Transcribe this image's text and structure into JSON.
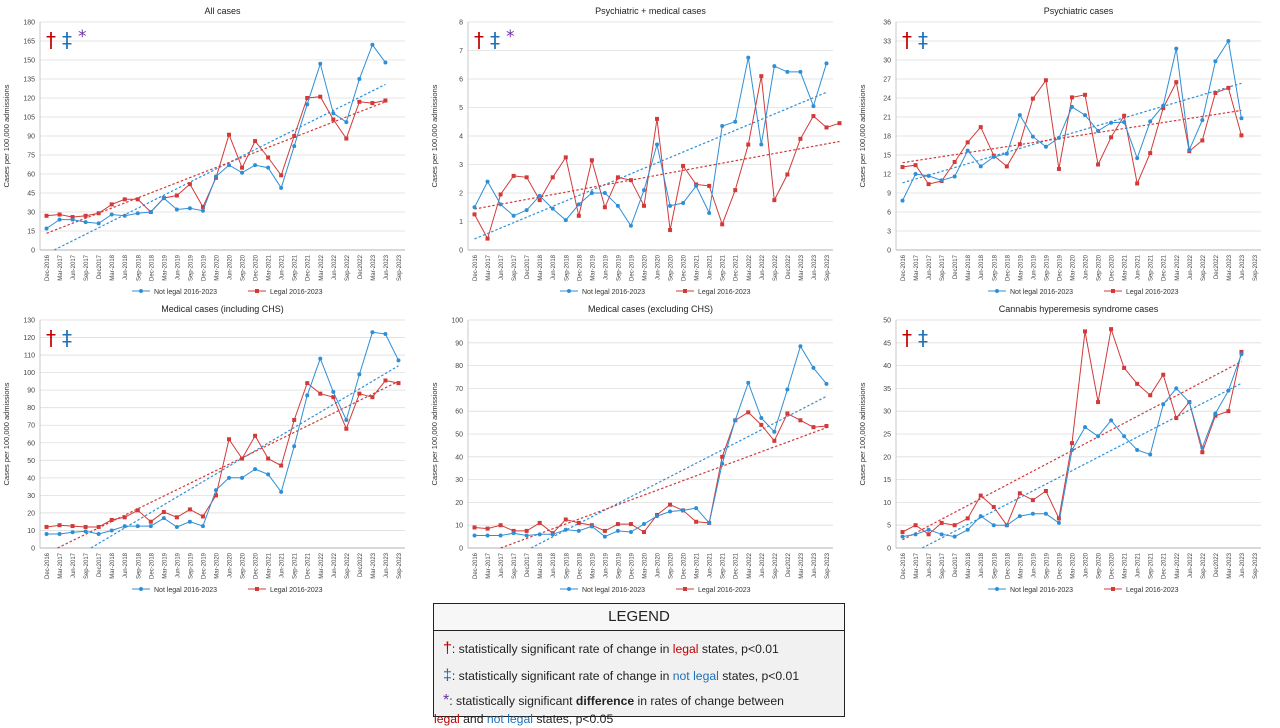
{
  "colors": {
    "not_legal": "#2f8fd6",
    "legal": "#d23a3a",
    "dagger": "#c00000",
    "ddagger": "#1f6fb4",
    "asterisk": "#7030a0"
  },
  "x_ticks": [
    "Dec-2016",
    "Mar-2017",
    "Jun-2017",
    "Sep-2017",
    "Dec2017",
    "Mar-2018",
    "Jun-2018",
    "Sep-2018",
    "Dec-2018",
    "Mar-2019",
    "Jun-2019",
    "Sep-2019",
    "Dec-2019",
    "Mar-2020",
    "Jun-2020",
    "Sep-2020",
    "Dec-2020",
    "Mar-2021",
    "Jun-2021",
    "Sep-2021",
    "Dec-2021",
    "Mar-2022",
    "Jun-2022",
    "Sep-2022",
    "Dec2022",
    "Mar-2023",
    "Jun-2023",
    "Sep-2023"
  ],
  "chart_data": [
    {
      "type": "line",
      "title": "All cases",
      "ylabel": "Cases per 100,000 admissions",
      "ylim": [
        0,
        180
      ],
      "yticks": [
        0,
        15,
        30,
        45,
        60,
        75,
        90,
        105,
        120,
        135,
        150,
        165,
        180
      ],
      "markers": [
        "†",
        "‡",
        "*"
      ],
      "series": [
        {
          "name": "Not legal 2016-2023",
          "values": [
            17,
            24,
            24,
            22,
            21,
            28,
            27,
            29,
            30,
            41,
            32,
            33,
            31,
            58,
            67,
            61,
            67,
            65,
            49,
            82,
            115,
            147,
            108,
            101,
            135,
            162,
            148
          ]
        },
        {
          "name": "Legal 2016-2023",
          "values": [
            27,
            28,
            26,
            27,
            29,
            36,
            40,
            40,
            30,
            41,
            43,
            52,
            34,
            57,
            91,
            65,
            86,
            73,
            59,
            90,
            120,
            121,
            103,
            88,
            117,
            116,
            118
          ]
        }
      ]
    },
    {
      "type": "line",
      "title": "Psychiatric + medical cases",
      "ylabel": "Cases per 100,000 admissions",
      "ylim": [
        0,
        8
      ],
      "yticks": [
        0,
        1,
        2,
        3,
        4,
        5,
        6,
        7,
        8
      ],
      "markers": [
        "†",
        "‡",
        "*"
      ],
      "series": [
        {
          "name": "Not legal 2016-2023",
          "values": [
            1.5,
            2.4,
            1.6,
            1.2,
            1.4,
            1.9,
            1.45,
            1.05,
            1.6,
            2.0,
            2.0,
            1.55,
            0.85,
            2.1,
            3.7,
            1.55,
            1.65,
            2.25,
            1.3,
            4.35,
            4.5,
            6.75,
            3.7,
            6.45,
            6.25,
            6.25,
            5.05,
            6.55
          ]
        },
        {
          "name": "Legal 2016-2023",
          "values": [
            1.25,
            0.4,
            1.95,
            2.6,
            2.55,
            1.75,
            2.55,
            3.25,
            1.2,
            3.15,
            1.5,
            2.55,
            2.45,
            1.55,
            4.6,
            0.7,
            2.95,
            2.3,
            2.25,
            0.9,
            2.1,
            3.7,
            6.1,
            1.75,
            2.65,
            3.9,
            4.7,
            4.3,
            4.45
          ]
        }
      ]
    },
    {
      "type": "line",
      "title": "Psychiatric cases",
      "ylabel": "Cases per 100,000 admissions",
      "ylim": [
        0,
        36
      ],
      "yticks": [
        0,
        3,
        6,
        9,
        12,
        15,
        18,
        21,
        24,
        27,
        30,
        33,
        36
      ],
      "markers": [
        "†",
        "‡"
      ],
      "series": [
        {
          "name": "Not legal 2016-2023",
          "values": [
            7.8,
            12,
            11.7,
            11,
            11.6,
            15.7,
            13.2,
            14.7,
            15.2,
            21.3,
            17.9,
            16.3,
            17.7,
            22.6,
            21.3,
            18.8,
            20.1,
            20.2,
            14.5,
            20.3,
            22.8,
            31.8,
            15.8,
            20.5,
            29.8,
            33,
            20.8
          ]
        },
        {
          "name": "Legal 2016-2023",
          "values": [
            13.1,
            13.4,
            10.4,
            10.9,
            13.9,
            17,
            19.4,
            14.9,
            13.2,
            16.7,
            23.9,
            26.8,
            12.8,
            24.1,
            24.5,
            13.5,
            17.8,
            21.2,
            10.5,
            15.3,
            22.4,
            26.5,
            15.6,
            17.3,
            24.8,
            25.6,
            18.1
          ]
        }
      ]
    },
    {
      "type": "line",
      "title": "Medical cases (including CHS)",
      "ylabel": "Cases per 100,000 admissions",
      "ylim": [
        0,
        130
      ],
      "yticks": [
        0,
        10,
        20,
        30,
        40,
        50,
        60,
        70,
        80,
        90,
        100,
        110,
        120,
        130
      ],
      "markers": [
        "†",
        "‡"
      ],
      "series": [
        {
          "name": "Not legal 2016-2023",
          "values": [
            8,
            8,
            9,
            9.5,
            8,
            10,
            12.5,
            12.5,
            12.5,
            17,
            12,
            15,
            12.5,
            33,
            40,
            40,
            45,
            42,
            32,
            58,
            87,
            108,
            89,
            73,
            99,
            123,
            122,
            107
          ]
        },
        {
          "name": "Legal 2016-2023",
          "values": [
            12,
            13,
            12.5,
            12,
            12,
            16,
            17.5,
            21.5,
            15,
            20.5,
            17.5,
            22,
            18,
            30,
            62,
            51,
            64,
            51,
            47,
            73,
            94,
            88,
            86,
            68,
            88,
            86,
            95.5,
            94
          ]
        }
      ]
    },
    {
      "type": "line",
      "title": "Medical cases (excluding CHS)",
      "ylabel": "Cases per 100,000 admissions",
      "ylim": [
        0,
        100
      ],
      "yticks": [
        0,
        10,
        20,
        30,
        40,
        50,
        60,
        70,
        80,
        90,
        100
      ],
      "markers": [],
      "series": [
        {
          "name": "Not legal 2016-2023",
          "values": [
            5.5,
            5.5,
            5.5,
            6.5,
            5.5,
            6,
            6,
            8,
            7.5,
            9.5,
            5,
            7.5,
            7,
            10.5,
            14,
            16,
            16.5,
            17.5,
            11,
            37,
            56,
            72.5,
            57,
            51,
            69.5,
            88.5,
            79,
            72
          ]
        },
        {
          "name": "Legal 2016-2023",
          "values": [
            9,
            8.5,
            10,
            7.5,
            7.5,
            11,
            6.5,
            12.5,
            11,
            10,
            7.5,
            10.5,
            10.5,
            7,
            14.5,
            19,
            16.5,
            11.5,
            11,
            40,
            56,
            59.5,
            54,
            47,
            59,
            56,
            53,
            53.5
          ]
        }
      ]
    },
    {
      "type": "line",
      "title": "Cannabis hyperemesis syndrome cases",
      "ylabel": "Cases per 100,000 admissions",
      "ylim": [
        0,
        50
      ],
      "yticks": [
        0,
        5,
        10,
        15,
        20,
        25,
        30,
        35,
        40,
        45,
        50
      ],
      "markers": [
        "†",
        "‡"
      ],
      "series": [
        {
          "name": "Not legal 2016-2023",
          "values": [
            2.5,
            3,
            4,
            3,
            2.5,
            4,
            7,
            5,
            5,
            7,
            7.5,
            7.5,
            5.5,
            21.5,
            26.5,
            24.5,
            28,
            24.5,
            21.5,
            20.5,
            31.5,
            35,
            32,
            22,
            29.5,
            34.5,
            42.5
          ]
        },
        {
          "name": "Legal 2016-2023",
          "values": [
            3.5,
            5,
            3,
            5.5,
            5,
            6.5,
            11.5,
            9,
            5,
            12,
            10.5,
            12.5,
            6.5,
            23,
            47.5,
            32,
            48,
            39.5,
            36,
            33.5,
            38,
            28.5,
            32,
            21,
            29,
            30,
            43
          ]
        }
      ]
    }
  ],
  "legend": {
    "title": "LEGEND",
    "dagger": "†",
    "ddagger": "‡",
    "asterisk": "*",
    "line1_a": ": statistically significant rate of change in ",
    "line1_b": "legal",
    "line1_c": " states, p<0.01",
    "line2_a": ": statistically significant rate of change in ",
    "line2_b": "not legal",
    "line2_c": " states, p<0.01",
    "line3_a": ": statistically significant ",
    "line3_b": "difference",
    "line3_c": " in rates of change between",
    "line4_a": "legal",
    "line4_b": " and ",
    "line4_c": "not legal",
    "line4_d": " states, p<0.05"
  }
}
